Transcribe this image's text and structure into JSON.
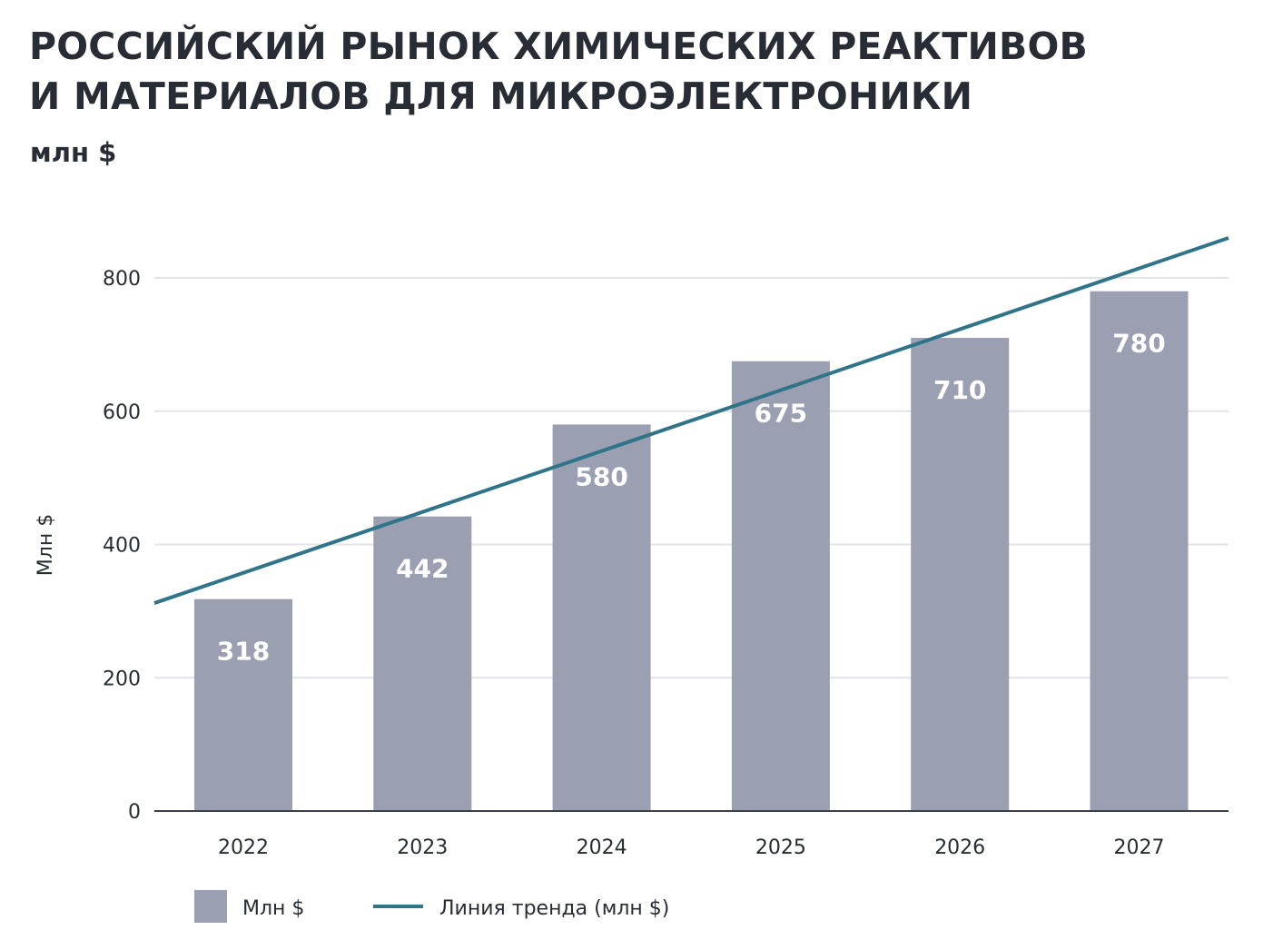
{
  "title_lines": [
    "РОССИЙСКИЙ РЫНОК ХИМИЧЕСКИХ РЕАКТИВОВ",
    "И МАТЕРИАЛОВ ДЛЯ МИКРОЭЛЕКТРОНИКИ"
  ],
  "subtitle": "млн $",
  "colors": {
    "bar": "#9a9fb1",
    "trend": "#2f7488",
    "grid": "#e1e4ea",
    "axis": "#3a3f4a",
    "text": "#272c35",
    "bar_label": "#ffffff"
  },
  "chart_data": {
    "type": "bar",
    "title": "РОССИЙСКИЙ РЫНОК ХИМИЧЕСКИХ РЕАКТИВОВ И МАТЕРИАЛОВ ДЛЯ МИКРОЭЛЕКТРОНИКИ",
    "subtitle": "млн $",
    "categories": [
      "2022",
      "2023",
      "2024",
      "2025",
      "2026",
      "2027"
    ],
    "series": [
      {
        "name": "Млн $",
        "type": "bar",
        "values": [
          318,
          442,
          580,
          675,
          710,
          780
        ],
        "data_labels": [
          "318",
          "442",
          "580",
          "675",
          "710",
          "780"
        ]
      },
      {
        "name": "Линия тренда (млн $)",
        "type": "line",
        "start_value": 312,
        "end_value": 860
      }
    ],
    "xlabel": "",
    "ylabel": "Млн $",
    "ylim": [
      0,
      800
    ],
    "yticks": [
      0,
      200,
      400,
      600,
      800
    ],
    "grid": true,
    "legend_position": "bottom-left"
  }
}
